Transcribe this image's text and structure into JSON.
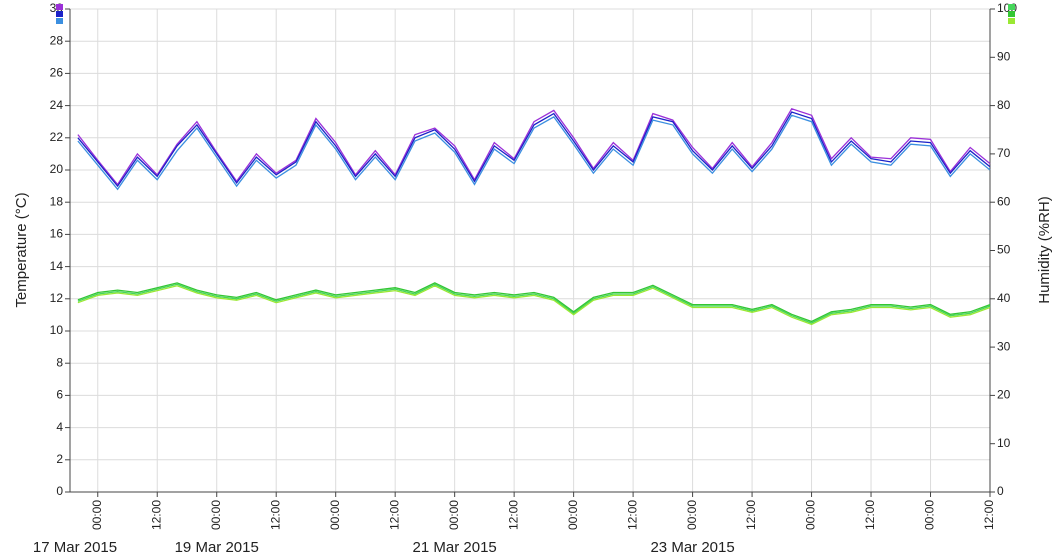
{
  "chart_data": {
    "type": "line",
    "y_label": "Temperature (°C)",
    "y2_label": "Humidity (%RH)",
    "x": [
      20,
      24,
      28,
      32,
      36,
      40,
      44,
      48,
      52,
      56,
      60,
      64,
      68,
      72,
      76,
      80,
      84,
      88,
      92,
      96,
      100,
      104,
      108,
      112,
      116,
      120,
      124,
      128,
      132,
      136,
      140,
      144,
      148,
      152,
      156,
      160,
      164,
      168,
      172,
      176,
      180,
      184,
      188,
      192,
      196,
      200,
      204
    ],
    "xlim": [
      18.4,
      204
    ],
    "xticks": [
      {
        "value": 24,
        "label": "00:00"
      },
      {
        "value": 36,
        "label": "12:00"
      },
      {
        "value": 48,
        "label": "00:00"
      },
      {
        "value": 60,
        "label": "12:00"
      },
      {
        "value": 72,
        "label": "00:00"
      },
      {
        "value": 84,
        "label": "12:00"
      },
      {
        "value": 96,
        "label": "00:00"
      },
      {
        "value": 108,
        "label": "12:00"
      },
      {
        "value": 120,
        "label": "00:00"
      },
      {
        "value": 132,
        "label": "12:00"
      },
      {
        "value": 144,
        "label": "00:00"
      },
      {
        "value": 156,
        "label": "12:00"
      },
      {
        "value": 168,
        "label": "00:00"
      },
      {
        "value": 180,
        "label": "12:00"
      },
      {
        "value": 192,
        "label": "00:00"
      },
      {
        "value": 204,
        "label": "12:00"
      }
    ],
    "date_ticks": [
      {
        "value": 0,
        "label": "17 Mar 2015"
      },
      {
        "value": 48,
        "label": "19 Mar 2015"
      },
      {
        "value": 96,
        "label": "21 Mar 2015"
      },
      {
        "value": 144,
        "label": "23 Mar 2015"
      }
    ],
    "ylim": [
      0,
      30
    ],
    "yticks": [
      0,
      2,
      4,
      6,
      8,
      10,
      12,
      14,
      16,
      18,
      20,
      22,
      24,
      26,
      28,
      30
    ],
    "y2lim": [
      0,
      100
    ],
    "y2ticks": [
      0,
      10,
      20,
      30,
      40,
      50,
      60,
      70,
      80,
      90,
      100
    ],
    "grid": true,
    "series": [
      {
        "color": "#9b30d8",
        "values": [
          22.2,
          20.6,
          19.1,
          21.0,
          19.7,
          21.6,
          23.0,
          21.1,
          19.3,
          21.0,
          19.8,
          20.6,
          23.2,
          21.7,
          19.7,
          21.2,
          19.7,
          22.2,
          22.6,
          21.5,
          19.4,
          21.7,
          20.7,
          23.0,
          23.7,
          22.0,
          20.1,
          21.7,
          20.6,
          23.5,
          23.1,
          21.4,
          20.1,
          21.7,
          20.2,
          21.7,
          23.8,
          23.4,
          20.7,
          22.0,
          20.8,
          20.7,
          22.0,
          21.9,
          19.9,
          21.4,
          20.4
        ]
      },
      {
        "color": "#1c22c8",
        "values": [
          22.0,
          20.5,
          19.0,
          20.8,
          19.6,
          21.5,
          22.8,
          21.0,
          19.2,
          20.8,
          19.7,
          20.5,
          23.0,
          21.5,
          19.6,
          21.0,
          19.6,
          22.0,
          22.5,
          21.3,
          19.3,
          21.5,
          20.6,
          22.8,
          23.5,
          21.8,
          20.0,
          21.5,
          20.5,
          23.3,
          23.0,
          21.2,
          20.0,
          21.5,
          20.1,
          21.5,
          23.6,
          23.2,
          20.5,
          21.8,
          20.7,
          20.5,
          21.8,
          21.7,
          19.8,
          21.2,
          20.2
        ]
      },
      {
        "color": "#3b8fe0",
        "values": [
          21.8,
          20.3,
          18.8,
          20.6,
          19.4,
          21.2,
          22.6,
          20.8,
          19.0,
          20.6,
          19.5,
          20.3,
          22.8,
          21.3,
          19.4,
          20.8,
          19.4,
          21.8,
          22.3,
          21.1,
          19.1,
          21.3,
          20.4,
          22.6,
          23.3,
          21.6,
          19.8,
          21.3,
          20.3,
          23.1,
          22.8,
          21.0,
          19.8,
          21.3,
          19.9,
          21.3,
          23.4,
          23.0,
          20.3,
          21.6,
          20.5,
          20.3,
          21.6,
          21.5,
          19.6,
          21.0,
          20.0
        ]
      },
      {
        "color": "#44d65a",
        "axis": "y2",
        "values": [
          39.5,
          41.0,
          41.5,
          41.0,
          42.0,
          43.0,
          41.5,
          40.5,
          40.0,
          41.0,
          39.5,
          40.5,
          41.5,
          40.5,
          41.0,
          41.5,
          42.0,
          41.0,
          43.0,
          41.0,
          40.5,
          41.0,
          40.5,
          41.0,
          40.0,
          37.0,
          40.0,
          41.0,
          41.0,
          42.5,
          40.5,
          38.5,
          38.5,
          38.5,
          37.5,
          38.5,
          36.5,
          35.0,
          37.0,
          37.5,
          38.5,
          38.5,
          38.0,
          38.5,
          36.5,
          37.0,
          38.5
        ]
      },
      {
        "color": "#33c633",
        "axis": "y2",
        "values": [
          39.8,
          41.3,
          41.8,
          41.3,
          42.3,
          43.3,
          41.8,
          40.8,
          40.3,
          41.3,
          39.8,
          40.8,
          41.8,
          40.8,
          41.3,
          41.8,
          42.3,
          41.3,
          43.3,
          41.3,
          40.8,
          41.3,
          40.8,
          41.3,
          40.3,
          37.3,
          40.3,
          41.3,
          41.3,
          42.8,
          40.8,
          38.8,
          38.8,
          38.8,
          37.8,
          38.8,
          36.8,
          35.3,
          37.3,
          37.8,
          38.8,
          38.8,
          38.3,
          38.8,
          36.8,
          37.3,
          38.8
        ]
      },
      {
        "color": "#9ae833",
        "axis": "y2",
        "values": [
          39.2,
          40.7,
          41.2,
          40.7,
          41.7,
          42.7,
          41.2,
          40.2,
          39.7,
          40.7,
          39.2,
          40.2,
          41.2,
          40.2,
          40.7,
          41.2,
          41.7,
          40.7,
          42.7,
          40.7,
          40.2,
          40.7,
          40.2,
          40.7,
          39.7,
          36.7,
          39.7,
          40.7,
          40.7,
          42.2,
          40.2,
          38.2,
          38.2,
          38.2,
          37.2,
          38.2,
          36.2,
          34.7,
          36.7,
          37.2,
          38.2,
          38.2,
          37.7,
          38.2,
          36.2,
          36.7,
          38.2
        ]
      }
    ]
  }
}
